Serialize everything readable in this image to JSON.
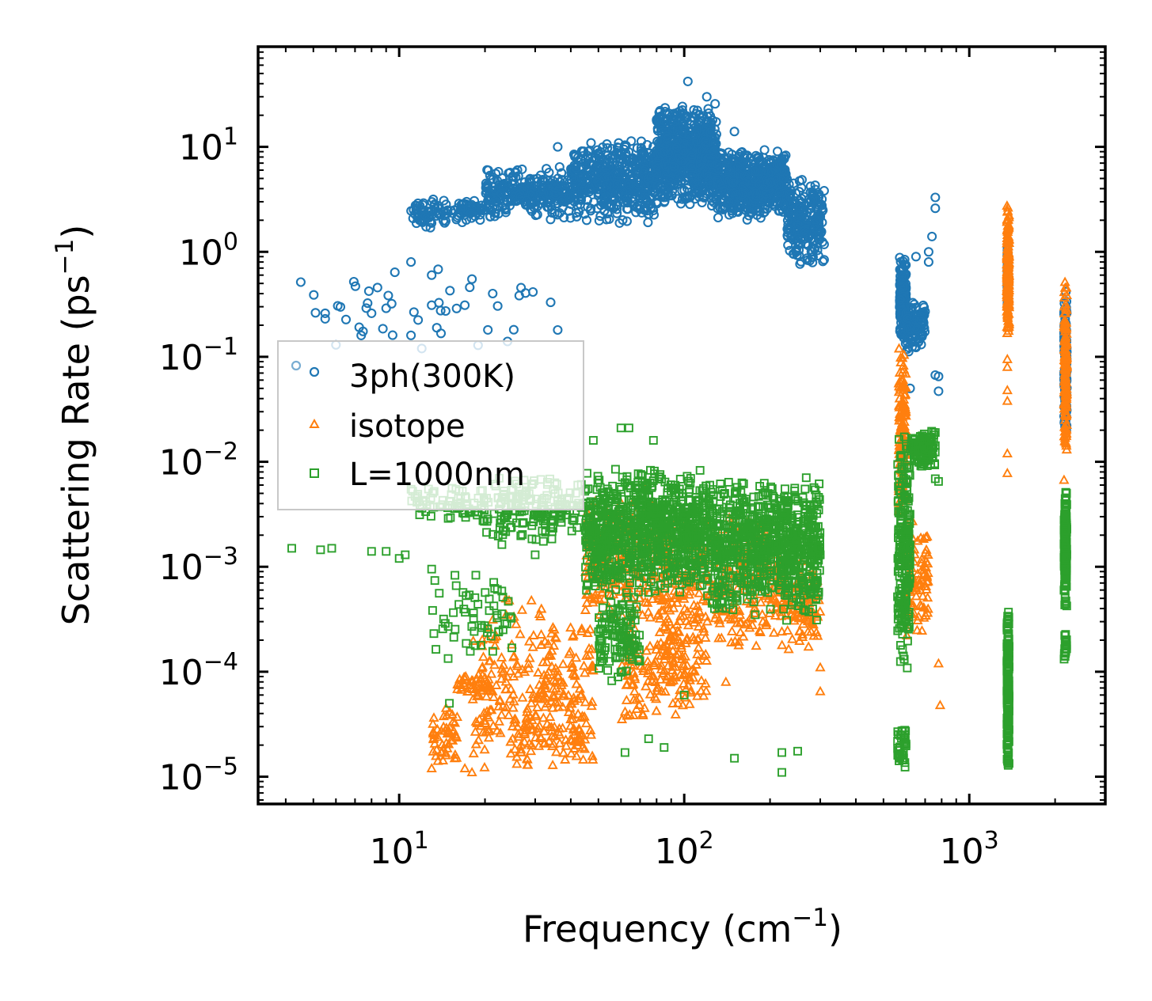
{
  "chart_data": {
    "type": "scatter",
    "title": "",
    "xlabel": "Frequency (cm",
    "xlabel_exp": "−1",
    "xlabel_close": ")",
    "ylabel": "Scattering Rate (ps",
    "ylabel_exp": "−1",
    "ylabel_close": ")",
    "xscale": "log",
    "yscale": "log",
    "xlim": [
      3.2,
      3000
    ],
    "ylim": [
      5.5e-06,
      90
    ],
    "x_ticks": [
      {
        "value": 10,
        "base": "10",
        "exp": "1"
      },
      {
        "value": 100,
        "base": "10",
        "exp": "2"
      },
      {
        "value": 1000,
        "base": "10",
        "exp": "3"
      }
    ],
    "y_ticks": [
      {
        "value": 1e-05,
        "base": "10",
        "exp": "−5"
      },
      {
        "value": 0.0001,
        "base": "10",
        "exp": "−4"
      },
      {
        "value": 0.001,
        "base": "10",
        "exp": "−3"
      },
      {
        "value": 0.01,
        "base": "10",
        "exp": "−2"
      },
      {
        "value": 0.1,
        "base": "10",
        "exp": "−1"
      },
      {
        "value": 1,
        "base": "10",
        "exp": "0"
      },
      {
        "value": 10,
        "base": "10",
        "exp": "1"
      }
    ],
    "legend_position": "center-left",
    "series": [
      {
        "name": "3ph(300K)",
        "marker": "circle",
        "color": "#1f77b4",
        "clusters": [
          {
            "x": [
              11,
              13
            ],
            "y": [
              1.6,
              3.0
            ],
            "n": 40
          },
          {
            "x": [
              13,
              20
            ],
            "y": [
              1.8,
              3.2
            ],
            "n": 80
          },
          {
            "x": [
              20,
              40
            ],
            "y": [
              2.0,
              6.5
            ],
            "n": 260
          },
          {
            "x": [
              40,
              80
            ],
            "y": [
              1.8,
              12
            ],
            "n": 500
          },
          {
            "x": [
              80,
              130
            ],
            "y": [
              2.5,
              28
            ],
            "n": 700
          },
          {
            "x": [
              130,
              230
            ],
            "y": [
              2.0,
              10
            ],
            "n": 600
          },
          {
            "x": [
              230,
              310
            ],
            "y": [
              0.7,
              5.0
            ],
            "n": 220
          },
          {
            "x": [
              570,
              600
            ],
            "y": [
              0.12,
              1.0
            ],
            "n": 160
          },
          {
            "x": [
              600,
              700
            ],
            "y": [
              0.1,
              0.35
            ],
            "n": 100
          },
          {
            "x": [
              1360,
              1370
            ],
            "y": [
              0.25,
              1.4
            ],
            "n": 110
          },
          {
            "x": [
              2150,
              2200
            ],
            "y": [
              0.015,
              0.45
            ],
            "n": 140
          },
          {
            "x": [
              4.5,
              30
            ],
            "y": [
              0.1,
              0.9
            ],
            "n": 40
          }
        ],
        "points": [
          [
            103,
            42
          ],
          [
            80,
            18
          ],
          [
            150,
            14
          ],
          [
            120,
            30
          ],
          [
            36,
            10
          ],
          [
            44,
            9
          ],
          [
            5.5,
            0.26
          ],
          [
            5.5,
            0.23
          ],
          [
            6,
            0.13
          ],
          [
            8,
            0.26
          ],
          [
            9,
            0.29
          ],
          [
            11,
            0.16
          ],
          [
            11,
            0.8
          ],
          [
            12,
            0.12
          ],
          [
            13,
            0.6
          ],
          [
            13,
            0.31
          ],
          [
            17,
            0.31
          ],
          [
            18,
            0.55
          ],
          [
            24,
            0.14
          ],
          [
            36,
            0.18
          ],
          [
            34,
            0.33
          ],
          [
            760,
            3.3
          ],
          [
            760,
            2.6
          ],
          [
            740,
            1.4
          ],
          [
            720,
            0.8
          ],
          [
            760,
            0.067
          ],
          [
            780,
            0.065
          ],
          [
            780,
            0.047
          ],
          [
            650,
            0.9
          ],
          [
            720,
            1.0
          ],
          [
            620,
            0.05
          ]
        ]
      },
      {
        "name": "isotope",
        "marker": "triangle",
        "color": "#ff7f0e",
        "clusters": [
          {
            "x": [
              13,
              16
            ],
            "y": [
              1.2e-05,
              5e-05
            ],
            "n": 50
          },
          {
            "x": [
              16,
              21
            ],
            "y": [
              6e-05,
              9.5e-05
            ],
            "n": 40
          },
          {
            "x": [
              18,
              48
            ],
            "y": [
              1e-05,
              0.00055
            ],
            "n": 260
          },
          {
            "x": [
              25,
              45
            ],
            "y": [
              1.2e-05,
              6e-05
            ],
            "n": 80
          },
          {
            "x": [
              45,
              80
            ],
            "y": [
              0.0003,
              0.006
            ],
            "n": 220
          },
          {
            "x": [
              60,
              120
            ],
            "y": [
              3e-05,
              0.0005
            ],
            "n": 180
          },
          {
            "x": [
              80,
              200
            ],
            "y": [
              0.00015,
              0.004
            ],
            "n": 320
          },
          {
            "x": [
              200,
              300
            ],
            "y": [
              0.00015,
              0.0015
            ],
            "n": 140
          },
          {
            "x": [
              565,
              600
            ],
            "y": [
              0.002,
              0.15
            ],
            "n": 140
          },
          {
            "x": [
              600,
              720
            ],
            "y": [
              0.0002,
              0.003
            ],
            "n": 90
          },
          {
            "x": [
              1355,
              1380
            ],
            "y": [
              0.15,
              2.8
            ],
            "n": 200
          },
          {
            "x": [
              2150,
              2200
            ],
            "y": [
              0.01,
              0.55
            ],
            "n": 150
          }
        ],
        "points": [
          [
            1360,
            0.095
          ],
          [
            1360,
            0.08
          ],
          [
            1360,
            0.048
          ],
          [
            1360,
            0.038
          ],
          [
            1360,
            0.012
          ],
          [
            1360,
            0.0078
          ],
          [
            2150,
            0.0067
          ],
          [
            780,
            0.00012
          ],
          [
            790,
            4.8e-05
          ],
          [
            300,
            6.5e-05
          ],
          [
            300,
            0.00011
          ],
          [
            140,
            8e-05
          ],
          [
            95,
            5e-05
          ],
          [
            13,
            1.2e-05
          ],
          [
            17,
            1.2e-05
          ],
          [
            18,
            1.1e-05
          ]
        ]
      },
      {
        "name": "L=1000nm",
        "marker": "square",
        "color": "#2ca02c",
        "clusters": [
          {
            "x": [
              11,
              20
            ],
            "y": [
              0.0025,
              0.006
            ],
            "n": 70
          },
          {
            "x": [
              20,
              45
            ],
            "y": [
              0.0015,
              0.008
            ],
            "n": 180
          },
          {
            "x": [
              45,
              120
            ],
            "y": [
              0.0005,
              0.009
            ],
            "n": 900
          },
          {
            "x": [
              50,
              70
            ],
            "y": [
              8e-05,
              0.0006
            ],
            "n": 120
          },
          {
            "x": [
              120,
              300
            ],
            "y": [
              0.0003,
              0.008
            ],
            "n": 800
          },
          {
            "x": [
              13,
              25
            ],
            "y": [
              0.00013,
              0.001
            ],
            "n": 60
          },
          {
            "x": [
              560,
              620
            ],
            "y": [
              0.0001,
              0.02
            ],
            "n": 220
          },
          {
            "x": [
              620,
              760
            ],
            "y": [
              0.008,
              0.022
            ],
            "n": 100
          },
          {
            "x": [
              560,
              600
            ],
            "y": [
              1.1e-05,
              3e-05
            ],
            "n": 40
          },
          {
            "x": [
              1355,
              1380
            ],
            "y": [
              1e-05,
              0.0005
            ],
            "n": 210
          },
          {
            "x": [
              2150,
              2200
            ],
            "y": [
              0.0004,
              0.006
            ],
            "n": 180
          },
          {
            "x": [
              2150,
              2200
            ],
            "y": [
              0.00011,
              0.00025
            ],
            "n": 20
          }
        ],
        "points": [
          [
            4.2,
            0.0015
          ],
          [
            5.3,
            0.00145
          ],
          [
            5.8,
            0.0015
          ],
          [
            8,
            0.0014
          ],
          [
            9,
            0.0014
          ],
          [
            10,
            0.0012
          ],
          [
            10.5,
            0.0013
          ],
          [
            12.5,
            0.0039
          ],
          [
            13,
            0.00095
          ],
          [
            15,
            5e-05
          ],
          [
            30,
            0.0013
          ],
          [
            48,
            0.016
          ],
          [
            60,
            0.021
          ],
          [
            64,
            0.021
          ],
          [
            78,
            0.016
          ],
          [
            75,
            2.3e-05
          ],
          [
            62,
            1.7e-05
          ],
          [
            85,
            1.9e-05
          ],
          [
            100,
            6e-05
          ],
          [
            150,
            1.5e-05
          ],
          [
            220,
            1.7e-05
          ],
          [
            220,
            1.1e-05
          ],
          [
            250,
            1.75e-05
          ],
          [
            290,
            0.0005
          ],
          [
            300,
            0.0013
          ],
          [
            760,
            0.019
          ],
          [
            780,
            0.0065
          ],
          [
            760,
            0.0069
          ],
          [
            720,
            0.016
          ],
          [
            660,
            0.013
          ]
        ]
      }
    ]
  }
}
